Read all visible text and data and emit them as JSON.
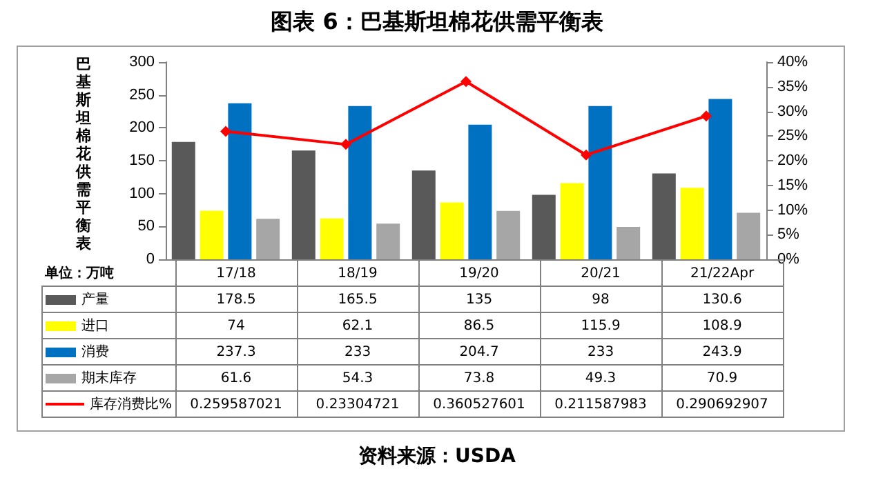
{
  "chart_data": {
    "type": "bar",
    "title": "图表 6：巴基斯坦棉花供需平衡表",
    "ylabel": "巴基斯坦棉花供需平衡表",
    "categories": [
      "17/18",
      "18/19",
      "19/20",
      "20/21",
      "21/22Apr"
    ],
    "series": [
      {
        "name": "产量",
        "color": "#595959",
        "values": [
          178.5,
          165.5,
          135,
          98,
          130.6
        ]
      },
      {
        "name": "进口",
        "color": "#ffff00",
        "values": [
          74,
          62.1,
          86.5,
          115.9,
          108.9
        ]
      },
      {
        "name": "消费",
        "color": "#0070c0",
        "values": [
          237.3,
          233,
          204.7,
          233,
          243.9
        ]
      },
      {
        "name": "期末库存",
        "color": "#a6a6a6",
        "values": [
          61.6,
          54.3,
          73.8,
          49.3,
          70.9
        ]
      },
      {
        "name": "库存消费比%",
        "type": "line",
        "axis": "y2",
        "color": "#ff0000",
        "marker": "diamond",
        "values": [
          0.259587021,
          0.23304721,
          0.360527601,
          0.211587983,
          0.290692907
        ]
      }
    ],
    "ylim": [
      0,
      300
    ],
    "yticks": [
      0,
      50,
      100,
      150,
      200,
      250,
      300
    ],
    "y2lim": [
      0,
      0.4
    ],
    "y2ticks": [
      {
        "value": 0,
        "label": "0%"
      },
      {
        "value": 0.05,
        "label": "5%"
      },
      {
        "value": 0.1,
        "label": "10%"
      },
      {
        "value": 0.15,
        "label": "15%"
      },
      {
        "value": 0.2,
        "label": "20%"
      },
      {
        "value": 0.25,
        "label": "25%"
      },
      {
        "value": 0.3,
        "label": "30%"
      },
      {
        "value": 0.35,
        "label": "35%"
      },
      {
        "value": 0.4,
        "label": "40%"
      }
    ],
    "grid": false,
    "legend": "bottom",
    "data_labels": true,
    "annotations": [
      "单位：万吨",
      "资料来源：USDA"
    ]
  }
}
